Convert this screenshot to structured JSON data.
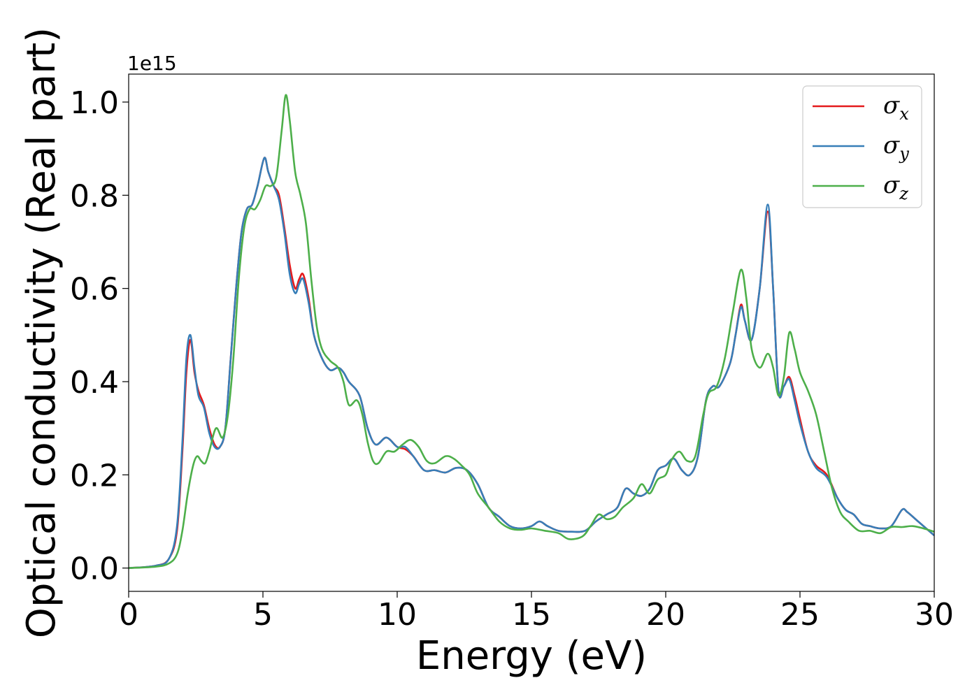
{
  "chart_data": {
    "type": "line",
    "title": "",
    "xlabel": "Energy (eV)",
    "ylabel": "Optical conductivity (Real part)",
    "y_offset_label": "1e15",
    "xlim": [
      0,
      30
    ],
    "ylim": [
      -0.05,
      1.06
    ],
    "x_ticks": [
      0,
      5,
      10,
      15,
      20,
      25,
      30
    ],
    "x_tick_labels": [
      "0",
      "5",
      "10",
      "15",
      "20",
      "25",
      "30"
    ],
    "y_ticks": [
      0.0,
      0.2,
      0.4,
      0.6,
      0.8,
      1.0
    ],
    "y_tick_labels": [
      "0.0",
      "0.2",
      "0.4",
      "0.6",
      "0.8",
      "1.0"
    ],
    "grid": false,
    "legend_position": "top-right",
    "series": [
      {
        "name": "σx",
        "symbol": "σ",
        "subscript": "x",
        "color": "#e41a1c",
        "points": [
          [
            0,
            0
          ],
          [
            1.0,
            0.005
          ],
          [
            1.5,
            0.02
          ],
          [
            1.8,
            0.08
          ],
          [
            2.0,
            0.25
          ],
          [
            2.15,
            0.42
          ],
          [
            2.3,
            0.49
          ],
          [
            2.45,
            0.42
          ],
          [
            2.6,
            0.38
          ],
          [
            2.8,
            0.35
          ],
          [
            3.0,
            0.3
          ],
          [
            3.2,
            0.265
          ],
          [
            3.4,
            0.26
          ],
          [
            3.6,
            0.3
          ],
          [
            3.8,
            0.45
          ],
          [
            4.0,
            0.6
          ],
          [
            4.2,
            0.72
          ],
          [
            4.4,
            0.77
          ],
          [
            4.6,
            0.78
          ],
          [
            4.8,
            0.82
          ],
          [
            5.05,
            0.88
          ],
          [
            5.2,
            0.85
          ],
          [
            5.4,
            0.82
          ],
          [
            5.6,
            0.8
          ],
          [
            5.8,
            0.73
          ],
          [
            6.0,
            0.65
          ],
          [
            6.2,
            0.6
          ],
          [
            6.35,
            0.62
          ],
          [
            6.5,
            0.63
          ],
          [
            6.7,
            0.58
          ],
          [
            6.9,
            0.5
          ],
          [
            7.2,
            0.45
          ],
          [
            7.5,
            0.425
          ],
          [
            7.8,
            0.43
          ],
          [
            8.0,
            0.42
          ],
          [
            8.2,
            0.4
          ],
          [
            8.6,
            0.37
          ],
          [
            8.9,
            0.3
          ],
          [
            9.2,
            0.265
          ],
          [
            9.6,
            0.28
          ],
          [
            10.0,
            0.26
          ],
          [
            10.3,
            0.255
          ],
          [
            10.6,
            0.24
          ],
          [
            11.0,
            0.21
          ],
          [
            11.4,
            0.21
          ],
          [
            11.8,
            0.205
          ],
          [
            12.2,
            0.215
          ],
          [
            12.6,
            0.21
          ],
          [
            13.0,
            0.18
          ],
          [
            13.4,
            0.13
          ],
          [
            13.8,
            0.11
          ],
          [
            14.2,
            0.09
          ],
          [
            14.6,
            0.085
          ],
          [
            15.0,
            0.09
          ],
          [
            15.3,
            0.1
          ],
          [
            15.6,
            0.09
          ],
          [
            16.0,
            0.08
          ],
          [
            16.5,
            0.078
          ],
          [
            17.0,
            0.08
          ],
          [
            17.4,
            0.1
          ],
          [
            17.8,
            0.115
          ],
          [
            18.2,
            0.13
          ],
          [
            18.5,
            0.17
          ],
          [
            18.8,
            0.16
          ],
          [
            19.1,
            0.155
          ],
          [
            19.4,
            0.17
          ],
          [
            19.7,
            0.21
          ],
          [
            20.0,
            0.22
          ],
          [
            20.3,
            0.235
          ],
          [
            20.6,
            0.21
          ],
          [
            20.9,
            0.2
          ],
          [
            21.2,
            0.24
          ],
          [
            21.5,
            0.36
          ],
          [
            21.75,
            0.39
          ],
          [
            22.0,
            0.39
          ],
          [
            22.4,
            0.44
          ],
          [
            22.6,
            0.5
          ],
          [
            22.8,
            0.565
          ],
          [
            22.95,
            0.53
          ],
          [
            23.2,
            0.49
          ],
          [
            23.5,
            0.6
          ],
          [
            23.8,
            0.765
          ],
          [
            24.0,
            0.6
          ],
          [
            24.2,
            0.38
          ],
          [
            24.4,
            0.39
          ],
          [
            24.6,
            0.41
          ],
          [
            24.8,
            0.37
          ],
          [
            25.0,
            0.32
          ],
          [
            25.3,
            0.25
          ],
          [
            25.6,
            0.22
          ],
          [
            26.0,
            0.2
          ],
          [
            26.4,
            0.15
          ],
          [
            26.7,
            0.125
          ],
          [
            27.0,
            0.115
          ],
          [
            27.3,
            0.095
          ],
          [
            27.6,
            0.09
          ],
          [
            28.0,
            0.085
          ],
          [
            28.4,
            0.09
          ],
          [
            28.8,
            0.125
          ],
          [
            29.0,
            0.12
          ],
          [
            29.4,
            0.1
          ],
          [
            30.0,
            0.07
          ]
        ]
      },
      {
        "name": "σy",
        "symbol": "σ",
        "subscript": "y",
        "color": "#377eb8",
        "points": [
          [
            0,
            0
          ],
          [
            1.0,
            0.005
          ],
          [
            1.5,
            0.02
          ],
          [
            1.8,
            0.09
          ],
          [
            2.0,
            0.27
          ],
          [
            2.15,
            0.45
          ],
          [
            2.3,
            0.5
          ],
          [
            2.45,
            0.43
          ],
          [
            2.6,
            0.37
          ],
          [
            2.8,
            0.345
          ],
          [
            3.0,
            0.29
          ],
          [
            3.2,
            0.26
          ],
          [
            3.4,
            0.26
          ],
          [
            3.6,
            0.3
          ],
          [
            3.8,
            0.45
          ],
          [
            4.0,
            0.6
          ],
          [
            4.2,
            0.72
          ],
          [
            4.4,
            0.77
          ],
          [
            4.6,
            0.78
          ],
          [
            4.8,
            0.82
          ],
          [
            5.05,
            0.88
          ],
          [
            5.2,
            0.85
          ],
          [
            5.4,
            0.82
          ],
          [
            5.6,
            0.79
          ],
          [
            5.8,
            0.72
          ],
          [
            6.0,
            0.63
          ],
          [
            6.2,
            0.59
          ],
          [
            6.35,
            0.61
          ],
          [
            6.5,
            0.62
          ],
          [
            6.7,
            0.57
          ],
          [
            6.9,
            0.5
          ],
          [
            7.2,
            0.45
          ],
          [
            7.5,
            0.425
          ],
          [
            7.8,
            0.43
          ],
          [
            8.0,
            0.42
          ],
          [
            8.2,
            0.4
          ],
          [
            8.6,
            0.37
          ],
          [
            8.9,
            0.3
          ],
          [
            9.2,
            0.265
          ],
          [
            9.6,
            0.28
          ],
          [
            10.0,
            0.26
          ],
          [
            10.3,
            0.26
          ],
          [
            10.6,
            0.24
          ],
          [
            11.0,
            0.21
          ],
          [
            11.4,
            0.21
          ],
          [
            11.8,
            0.205
          ],
          [
            12.2,
            0.215
          ],
          [
            12.6,
            0.21
          ],
          [
            13.0,
            0.18
          ],
          [
            13.4,
            0.13
          ],
          [
            13.8,
            0.11
          ],
          [
            14.2,
            0.09
          ],
          [
            14.6,
            0.085
          ],
          [
            15.0,
            0.09
          ],
          [
            15.3,
            0.1
          ],
          [
            15.6,
            0.09
          ],
          [
            16.0,
            0.08
          ],
          [
            16.5,
            0.078
          ],
          [
            17.0,
            0.08
          ],
          [
            17.4,
            0.1
          ],
          [
            17.8,
            0.115
          ],
          [
            18.2,
            0.13
          ],
          [
            18.5,
            0.17
          ],
          [
            18.8,
            0.16
          ],
          [
            19.1,
            0.155
          ],
          [
            19.4,
            0.17
          ],
          [
            19.7,
            0.21
          ],
          [
            20.0,
            0.22
          ],
          [
            20.3,
            0.235
          ],
          [
            20.6,
            0.21
          ],
          [
            20.9,
            0.2
          ],
          [
            21.2,
            0.24
          ],
          [
            21.5,
            0.36
          ],
          [
            21.75,
            0.39
          ],
          [
            22.0,
            0.39
          ],
          [
            22.4,
            0.44
          ],
          [
            22.6,
            0.5
          ],
          [
            22.8,
            0.56
          ],
          [
            22.95,
            0.53
          ],
          [
            23.2,
            0.49
          ],
          [
            23.5,
            0.6
          ],
          [
            23.8,
            0.78
          ],
          [
            24.0,
            0.6
          ],
          [
            24.2,
            0.38
          ],
          [
            24.4,
            0.39
          ],
          [
            24.6,
            0.405
          ],
          [
            24.8,
            0.36
          ],
          [
            25.0,
            0.31
          ],
          [
            25.3,
            0.25
          ],
          [
            25.6,
            0.215
          ],
          [
            26.0,
            0.195
          ],
          [
            26.4,
            0.15
          ],
          [
            26.7,
            0.125
          ],
          [
            27.0,
            0.115
          ],
          [
            27.3,
            0.095
          ],
          [
            27.6,
            0.09
          ],
          [
            28.0,
            0.085
          ],
          [
            28.4,
            0.09
          ],
          [
            28.8,
            0.125
          ],
          [
            29.0,
            0.12
          ],
          [
            29.4,
            0.1
          ],
          [
            30.0,
            0.07
          ]
        ]
      },
      {
        "name": "σz",
        "symbol": "σ",
        "subscript": "z",
        "color": "#4daf4a",
        "points": [
          [
            0,
            0
          ],
          [
            1.0,
            0.003
          ],
          [
            1.5,
            0.01
          ],
          [
            1.8,
            0.03
          ],
          [
            2.0,
            0.08
          ],
          [
            2.2,
            0.16
          ],
          [
            2.4,
            0.22
          ],
          [
            2.55,
            0.24
          ],
          [
            2.7,
            0.23
          ],
          [
            2.85,
            0.225
          ],
          [
            3.0,
            0.25
          ],
          [
            3.25,
            0.3
          ],
          [
            3.5,
            0.28
          ],
          [
            3.7,
            0.33
          ],
          [
            3.9,
            0.45
          ],
          [
            4.1,
            0.62
          ],
          [
            4.3,
            0.73
          ],
          [
            4.5,
            0.77
          ],
          [
            4.7,
            0.77
          ],
          [
            4.9,
            0.79
          ],
          [
            5.1,
            0.82
          ],
          [
            5.3,
            0.82
          ],
          [
            5.5,
            0.84
          ],
          [
            5.7,
            0.94
          ],
          [
            5.85,
            1.015
          ],
          [
            6.0,
            0.96
          ],
          [
            6.2,
            0.85
          ],
          [
            6.4,
            0.8
          ],
          [
            6.6,
            0.74
          ],
          [
            6.8,
            0.62
          ],
          [
            7.0,
            0.52
          ],
          [
            7.2,
            0.47
          ],
          [
            7.5,
            0.445
          ],
          [
            7.8,
            0.43
          ],
          [
            8.0,
            0.4
          ],
          [
            8.2,
            0.35
          ],
          [
            8.5,
            0.36
          ],
          [
            8.7,
            0.33
          ],
          [
            8.9,
            0.27
          ],
          [
            9.1,
            0.23
          ],
          [
            9.3,
            0.225
          ],
          [
            9.6,
            0.25
          ],
          [
            9.9,
            0.25
          ],
          [
            10.2,
            0.265
          ],
          [
            10.5,
            0.275
          ],
          [
            10.8,
            0.26
          ],
          [
            11.1,
            0.23
          ],
          [
            11.4,
            0.225
          ],
          [
            11.8,
            0.24
          ],
          [
            12.1,
            0.235
          ],
          [
            12.4,
            0.22
          ],
          [
            12.7,
            0.2
          ],
          [
            13.0,
            0.16
          ],
          [
            13.4,
            0.13
          ],
          [
            13.8,
            0.1
          ],
          [
            14.2,
            0.085
          ],
          [
            14.6,
            0.082
          ],
          [
            15.0,
            0.085
          ],
          [
            15.5,
            0.08
          ],
          [
            16.0,
            0.075
          ],
          [
            16.4,
            0.062
          ],
          [
            16.9,
            0.068
          ],
          [
            17.2,
            0.09
          ],
          [
            17.5,
            0.115
          ],
          [
            17.8,
            0.105
          ],
          [
            18.1,
            0.11
          ],
          [
            18.4,
            0.13
          ],
          [
            18.8,
            0.15
          ],
          [
            19.1,
            0.18
          ],
          [
            19.4,
            0.16
          ],
          [
            19.7,
            0.19
          ],
          [
            20.0,
            0.2
          ],
          [
            20.2,
            0.23
          ],
          [
            20.5,
            0.25
          ],
          [
            20.8,
            0.23
          ],
          [
            21.1,
            0.24
          ],
          [
            21.4,
            0.33
          ],
          [
            21.6,
            0.375
          ],
          [
            21.9,
            0.39
          ],
          [
            22.2,
            0.45
          ],
          [
            22.5,
            0.55
          ],
          [
            22.8,
            0.64
          ],
          [
            23.0,
            0.58
          ],
          [
            23.2,
            0.47
          ],
          [
            23.5,
            0.43
          ],
          [
            23.8,
            0.46
          ],
          [
            24.0,
            0.43
          ],
          [
            24.2,
            0.37
          ],
          [
            24.4,
            0.41
          ],
          [
            24.6,
            0.505
          ],
          [
            24.8,
            0.47
          ],
          [
            25.0,
            0.42
          ],
          [
            25.3,
            0.38
          ],
          [
            25.6,
            0.33
          ],
          [
            25.9,
            0.25
          ],
          [
            26.2,
            0.17
          ],
          [
            26.5,
            0.12
          ],
          [
            26.8,
            0.1
          ],
          [
            27.2,
            0.08
          ],
          [
            27.6,
            0.08
          ],
          [
            28.0,
            0.075
          ],
          [
            28.4,
            0.088
          ],
          [
            28.8,
            0.088
          ],
          [
            29.2,
            0.09
          ],
          [
            29.6,
            0.085
          ],
          [
            30.0,
            0.078
          ]
        ]
      }
    ]
  }
}
